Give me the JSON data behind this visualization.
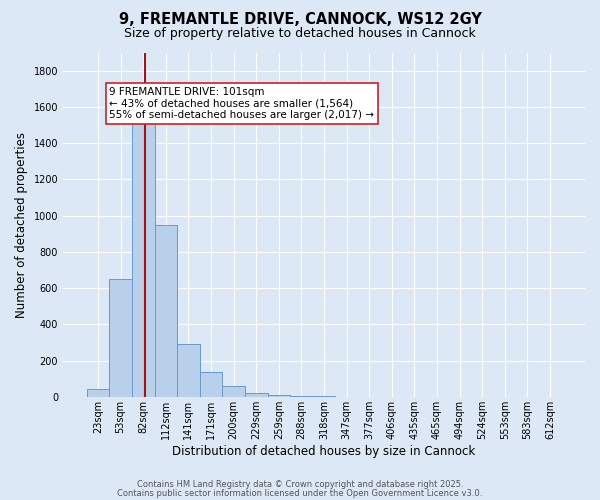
{
  "title": "9, FREMANTLE DRIVE, CANNOCK, WS12 2GY",
  "subtitle": "Size of property relative to detached houses in Cannock",
  "xlabel": "Distribution of detached houses by size in Cannock",
  "ylabel": "Number of detached properties",
  "categories": [
    "23sqm",
    "53sqm",
    "82sqm",
    "112sqm",
    "141sqm",
    "171sqm",
    "200sqm",
    "229sqm",
    "259sqm",
    "288sqm",
    "318sqm",
    "347sqm",
    "377sqm",
    "406sqm",
    "435sqm",
    "465sqm",
    "494sqm",
    "524sqm",
    "553sqm",
    "583sqm",
    "612sqm"
  ],
  "values": [
    45,
    650,
    1510,
    950,
    290,
    135,
    60,
    20,
    8,
    3,
    2,
    1,
    1,
    1,
    0,
    0,
    0,
    0,
    0,
    0,
    0
  ],
  "bar_color": "#b8d0ea",
  "bar_edge_color": "#6699cc",
  "background_color": "#dce8f5",
  "plot_bg_color": "#dce8f5",
  "grid_color": "#ffffff",
  "vline_x": 2.08,
  "vline_color": "#aa1111",
  "annotation_text": "9 FREMANTLE DRIVE: 101sqm\n← 43% of detached houses are smaller (1,564)\n55% of semi-detached houses are larger (2,017) →",
  "annotation_box_facecolor": "#ffffff",
  "annotation_box_edgecolor": "#cc2222",
  "footer1": "Contains HM Land Registry data © Crown copyright and database right 2025.",
  "footer2": "Contains public sector information licensed under the Open Government Licence v3.0.",
  "ylim": [
    0,
    1900
  ],
  "yticks": [
    0,
    200,
    400,
    600,
    800,
    1000,
    1200,
    1400,
    1600,
    1800
  ],
  "title_fontsize": 10.5,
  "subtitle_fontsize": 9,
  "tick_fontsize": 7,
  "axis_label_fontsize": 8.5,
  "annotation_fontsize": 7.5,
  "footer_fontsize": 6
}
